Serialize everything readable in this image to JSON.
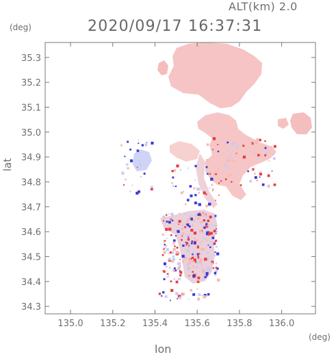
{
  "header": {
    "altitude_label": "ALT(km) 2.0",
    "timestamp": "2020/09/17 16:37:31"
  },
  "axes": {
    "y_unit": "(deg)",
    "x_unit": "(deg)",
    "y_label": "lat",
    "x_label": "lon",
    "x_ticks": [
      {
        "value": 135.0,
        "label": "135.0"
      },
      {
        "value": 135.2,
        "label": "135.2"
      },
      {
        "value": 135.4,
        "label": "135.4"
      },
      {
        "value": 135.6,
        "label": "135.6"
      },
      {
        "value": 135.8,
        "label": "135.8"
      },
      {
        "value": 136.0,
        "label": "136.0"
      }
    ],
    "y_ticks": [
      {
        "value": 34.3,
        "label": "34.3"
      },
      {
        "value": 34.4,
        "label": "34.4"
      },
      {
        "value": 34.5,
        "label": "34.5"
      },
      {
        "value": 34.6,
        "label": "34.6"
      },
      {
        "value": 34.7,
        "label": "34.7"
      },
      {
        "value": 34.8,
        "label": "34.8"
      },
      {
        "value": 34.9,
        "label": "34.9"
      },
      {
        "value": 35.0,
        "label": "35.0"
      },
      {
        "value": 35.1,
        "label": "35.1"
      },
      {
        "value": 35.2,
        "label": "35.2"
      },
      {
        "value": 35.3,
        "label": "35.3"
      }
    ],
    "x_range": [
      134.88,
      136.16
    ],
    "y_range": [
      34.27,
      35.36
    ]
  },
  "colors": {
    "positive": "#f4b9b9",
    "positive_strong": "#e83c3c",
    "negative": "#c8cdf4",
    "negative_strong": "#3a3ad8",
    "frame": "#777777"
  }
}
